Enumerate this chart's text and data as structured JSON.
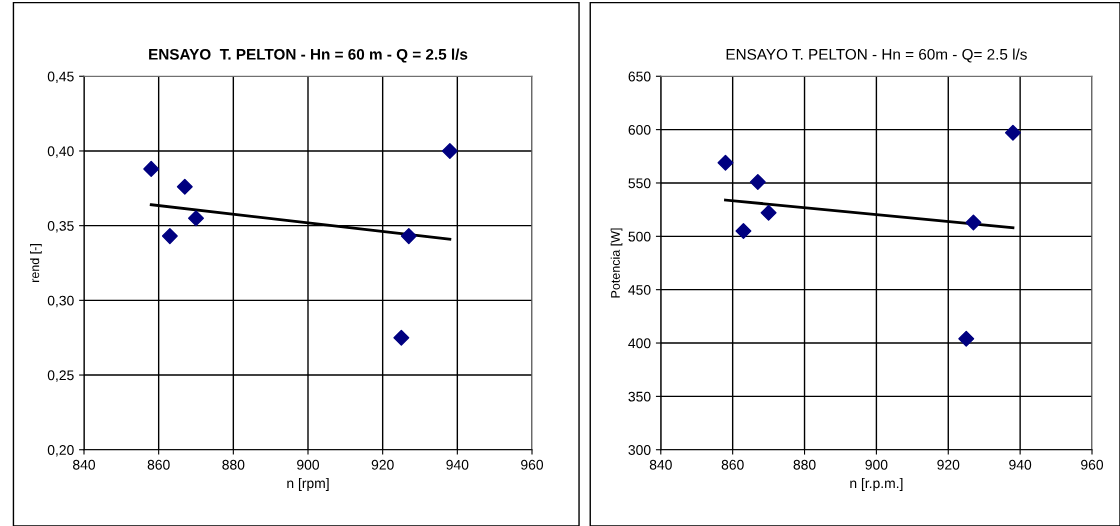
{
  "chart_data": [
    {
      "type": "scatter",
      "title": "ENSAYO  T. PELTON - Hn = 60 m - Q = 2.5 l/s",
      "xlabel": "n [rpm]",
      "ylabel": "rend [-]",
      "xlim": [
        840,
        960
      ],
      "xticks": [
        840,
        860,
        880,
        900,
        920,
        940,
        960
      ],
      "ylim": [
        0.2,
        0.45
      ],
      "yticks": [
        {
          "value": 0.2,
          "label": "0,20"
        },
        {
          "value": 0.25,
          "label": "0,25"
        },
        {
          "value": 0.3,
          "label": "0,30"
        },
        {
          "value": 0.35,
          "label": "0,35"
        },
        {
          "value": 0.4,
          "label": "0,40"
        },
        {
          "value": 0.45,
          "label": "0,45"
        }
      ],
      "grid": true,
      "series": [
        {
          "color": "#000080",
          "marker": "diamond",
          "x": [
            858,
            863,
            867,
            870,
            925,
            927,
            938
          ],
          "values": [
            0.388,
            0.343,
            0.376,
            0.355,
            0.275,
            0.343,
            0.4
          ]
        },
        {
          "type": "line",
          "color": "#000000",
          "marker": "none",
          "line_style": "solid",
          "x": [
            858,
            938
          ],
          "values": [
            0.364,
            0.341
          ]
        }
      ]
    },
    {
      "type": "scatter",
      "title": "ENSAYO T. PELTON - Hn = 60m - Q= 2.5 l/s",
      "xlabel": "n [r.p.m.]",
      "ylabel": "Potencia [W]",
      "xlim": [
        840,
        960
      ],
      "xticks": [
        840,
        860,
        880,
        900,
        920,
        940,
        960
      ],
      "ylim": [
        300,
        650
      ],
      "yticks": [
        300,
        350,
        400,
        450,
        500,
        550,
        600,
        650
      ],
      "grid": true,
      "series": [
        {
          "color": "#000080",
          "marker": "diamond",
          "x": [
            858,
            863,
            867,
            870,
            925,
            927,
            938
          ],
          "values": [
            569,
            505,
            551,
            522,
            404,
            513,
            597
          ]
        },
        {
          "type": "line",
          "color": "#000000",
          "marker": "none",
          "line_style": "solid",
          "x": [
            858,
            938
          ],
          "values": [
            534,
            508
          ]
        }
      ]
    }
  ]
}
